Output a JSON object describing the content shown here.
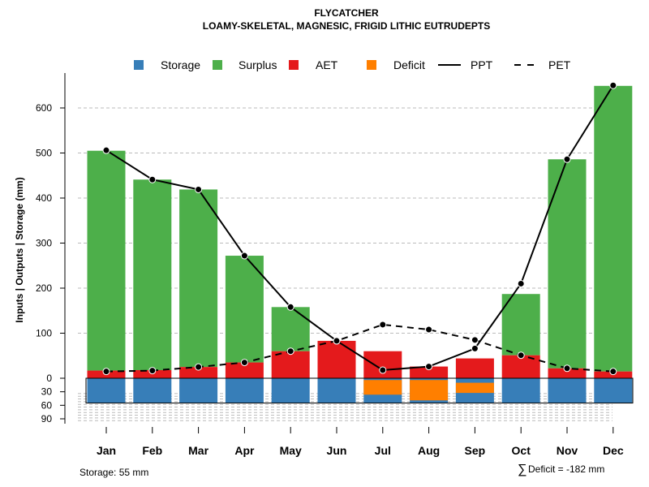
{
  "title": "FLYCATCHER",
  "subtitle": "LOAMY-SKELETAL, MAGNESIC, FRIGID LITHIC EUTRUDEPTS",
  "footer": {
    "storage_note": "Storage: 55 mm",
    "deficit_symbol": "∑",
    "deficit_note": "Deficit = -182 mm"
  },
  "colors": {
    "storage": "#377eb8",
    "surplus": "#4daf4a",
    "aet": "#e41a1c",
    "deficit": "#ff7f00",
    "line": "#000000",
    "grid": "#bbbbbb"
  },
  "chart_data": {
    "type": "bar",
    "title": "FLYCATCHER",
    "subtitle": "LOAMY-SKELETAL, MAGNESIC, FRIGID LITHIC EUTRUDEPTS",
    "xlabel": "",
    "ylabel": "Inputs | Outputs | Storage    (mm)",
    "ylim": [
      0,
      650
    ],
    "yticks": [
      0,
      100,
      200,
      300,
      400,
      500,
      600
    ],
    "lower_ticks": [
      30,
      60,
      90
    ],
    "lower_ylim": [
      0,
      95
    ],
    "storage_capacity": 55,
    "legend_position": "top",
    "categories": [
      "Jan",
      "Feb",
      "Mar",
      "Apr",
      "May",
      "Jun",
      "Jul",
      "Aug",
      "Sep",
      "Oct",
      "Nov",
      "Dec"
    ],
    "legend": [
      {
        "key": "storage",
        "label": "Storage",
        "kind": "box"
      },
      {
        "key": "surplus",
        "label": "Surplus",
        "kind": "box"
      },
      {
        "key": "aet",
        "label": "AET",
        "kind": "box"
      },
      {
        "key": "deficit",
        "label": "Deficit",
        "kind": "box"
      },
      {
        "key": "ppt",
        "label": "PPT",
        "kind": "solid"
      },
      {
        "key": "pet",
        "label": "PET",
        "kind": "dashed"
      }
    ],
    "series": [
      {
        "name": "AET",
        "values": [
          17,
          18,
          25,
          35,
          60,
          83,
          60,
          26,
          44,
          51,
          22,
          15
        ]
      },
      {
        "name": "Surplus",
        "values": [
          488,
          423,
          394,
          237,
          98,
          0,
          0,
          0,
          0,
          136,
          464,
          634
        ]
      },
      {
        "name": "PPT",
        "values": [
          506,
          441,
          419,
          272,
          158,
          83,
          18,
          26,
          66,
          210,
          486,
          650
        ]
      },
      {
        "name": "PET",
        "values": [
          15,
          17,
          25,
          35,
          60,
          83,
          119,
          108,
          85,
          51,
          22,
          15
        ]
      },
      {
        "name": "Storage",
        "values": [
          55,
          55,
          55,
          55,
          55,
          55,
          10,
          10,
          0,
          55,
          55,
          55
        ]
      },
      {
        "name": "Deficit",
        "values": [
          0,
          0,
          0,
          0,
          0,
          0,
          59,
          82,
          41,
          0,
          0,
          0
        ]
      }
    ]
  }
}
